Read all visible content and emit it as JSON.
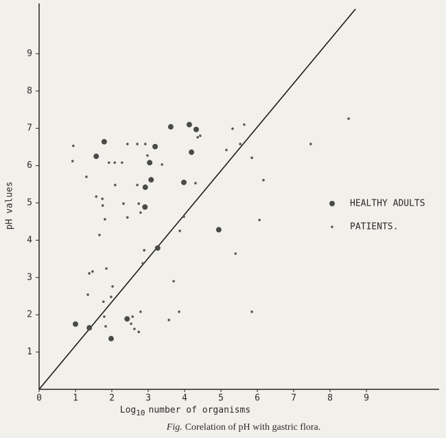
{
  "chart_data": {
    "type": "scatter",
    "y_label": "pH values",
    "x_label": {
      "base": "Log",
      "subscript": "10",
      "rest": "number of organisms"
    },
    "caption": {
      "prefix": "Fig.",
      "text": "Corelation of pH with gastric flora."
    },
    "xlim": [
      0,
      11
    ],
    "ylim": [
      0,
      10.35
    ],
    "xticks": [
      0,
      1,
      2,
      3,
      4,
      5,
      6,
      7,
      8,
      9
    ],
    "yticks": [
      1,
      2,
      3,
      4,
      5,
      6,
      7,
      8,
      9
    ],
    "grid": false,
    "legend": "right",
    "reference_line": {
      "x": [
        0,
        8.7
      ],
      "y": [
        0,
        10.2
      ],
      "color": "#1a1a1a"
    },
    "series": [
      {
        "name": "HEALTHY ADULTS",
        "color": "#4a4a4a",
        "size": 4,
        "x": [
          1.0,
          1.38,
          1.98,
          2.42,
          1.79,
          1.57,
          3.19,
          3.04,
          3.08,
          2.92,
          2.91,
          3.62,
          4.13,
          4.32,
          4.19,
          3.98,
          3.26,
          4.94
        ],
        "values": [
          1.75,
          1.65,
          1.36,
          1.89,
          6.64,
          6.25,
          6.51,
          6.08,
          5.62,
          5.42,
          4.89,
          7.04,
          7.1,
          6.97,
          6.36,
          5.55,
          3.79,
          4.28
        ]
      },
      {
        "name": "PATIENTS.",
        "color": "#555555",
        "size": 1.8,
        "x": [
          0.94,
          0.92,
          1.3,
          1.38,
          1.47,
          1.34,
          1.92,
          2.08,
          2.28,
          2.43,
          2.7,
          2.92,
          3.38,
          2.09,
          1.57,
          1.74,
          1.75,
          1.81,
          2.32,
          2.43,
          2.74,
          2.79,
          1.66,
          2.7,
          2.98,
          1.85,
          2.02,
          1.98,
          1.77,
          1.79,
          1.83,
          2.53,
          2.57,
          2.62,
          2.74,
          2.79,
          2.89,
          2.85,
          3.7,
          3.57,
          3.85,
          3.87,
          3.98,
          4.3,
          4.43,
          4.36,
          5.15,
          5.32,
          5.53,
          5.64,
          5.4,
          5.85,
          5.85,
          6.17,
          6.06,
          7.47,
          8.51
        ],
        "values": [
          6.53,
          6.12,
          5.7,
          3.11,
          3.16,
          2.54,
          6.08,
          6.08,
          6.08,
          6.58,
          6.58,
          6.58,
          6.03,
          5.48,
          5.17,
          5.11,
          4.93,
          4.56,
          4.98,
          4.61,
          4.98,
          4.74,
          4.14,
          5.48,
          6.27,
          3.24,
          2.76,
          2.48,
          2.35,
          1.95,
          1.69,
          1.76,
          1.95,
          1.62,
          1.54,
          2.08,
          3.73,
          3.38,
          2.9,
          1.86,
          2.08,
          4.25,
          4.63,
          5.53,
          6.8,
          6.76,
          6.42,
          6.99,
          6.58,
          7.1,
          3.64,
          2.08,
          6.21,
          5.61,
          4.54,
          6.58,
          7.26
        ]
      }
    ]
  }
}
